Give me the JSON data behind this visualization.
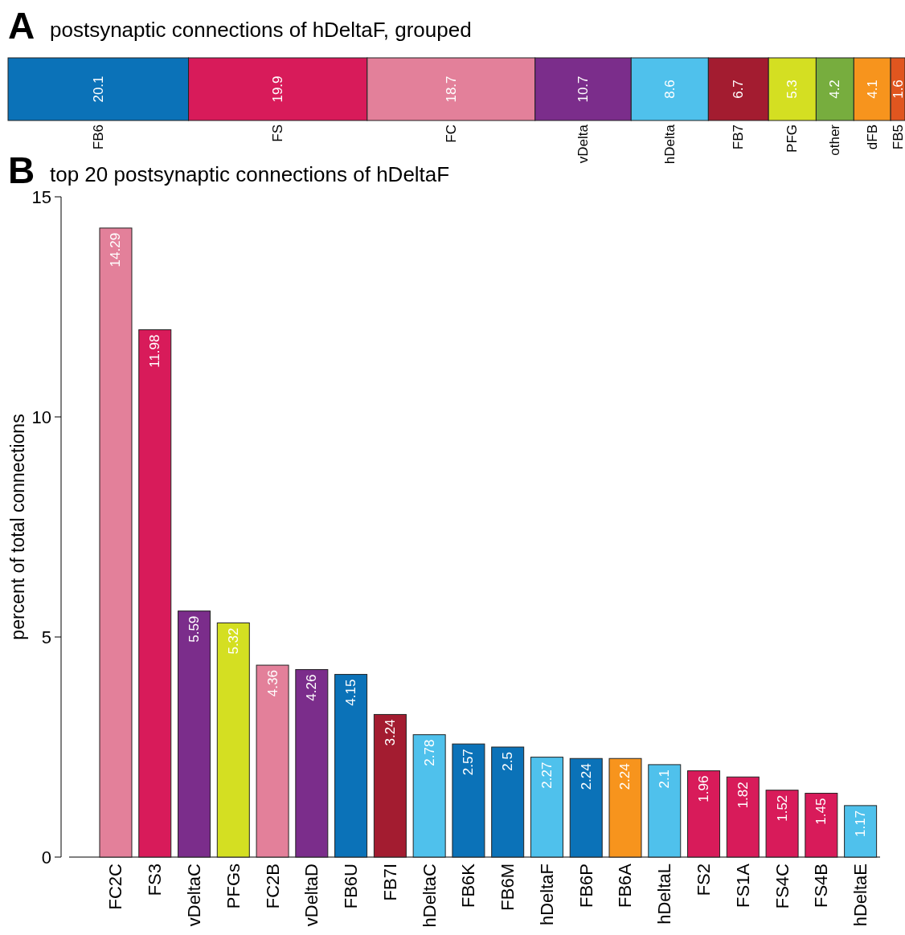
{
  "chart_data": [
    {
      "type": "bar",
      "orientation": "horizontal",
      "stacked": true,
      "data_labels": true,
      "title": "postsynaptic connections of hDeltaF, grouped",
      "annotations": [
        "A"
      ],
      "categories": [
        null
      ],
      "series": [
        {
          "name": "FB6",
          "color": "#0b72b8",
          "values": [
            20.1
          ]
        },
        {
          "name": "FS",
          "color": "#d81b5a",
          "values": [
            19.9
          ]
        },
        {
          "name": "FC",
          "color": "#e3809a",
          "values": [
            18.7
          ]
        },
        {
          "name": "vDelta",
          "color": "#7b2d8b",
          "values": [
            10.7
          ]
        },
        {
          "name": "hDelta",
          "color": "#4fc1ec",
          "values": [
            8.6
          ]
        },
        {
          "name": "FB7",
          "color": "#a31c30",
          "values": [
            6.7
          ]
        },
        {
          "name": "PFG",
          "color": "#d4df22",
          "values": [
            5.3
          ]
        },
        {
          "name": "other",
          "color": "#77ad3e",
          "values": [
            4.2
          ]
        },
        {
          "name": "dFB",
          "color": "#f7941d",
          "values": [
            4.1
          ]
        },
        {
          "name": "FB5",
          "color": "#e0561f",
          "values": [
            1.6
          ]
        }
      ]
    },
    {
      "type": "bar",
      "title": "top 20 postsynaptic connections of hDeltaF",
      "annotations": [
        "B"
      ],
      "ylabel": "percent of total connections",
      "ylim": [
        0,
        15
      ],
      "yticks": [
        0,
        5,
        10,
        15
      ],
      "data_labels": true,
      "categories": [
        "FC2C",
        "FS3",
        "vDeltaC",
        "PFGs",
        "FC2B",
        "vDeltaD",
        "FB6U",
        "FB7I",
        "hDeltaC",
        "FB6K",
        "FB6M",
        "hDeltaF",
        "FB6P",
        "FB6A",
        "hDeltaL",
        "FS2",
        "FS1A",
        "FS4C",
        "FS4B",
        "hDeltaE"
      ],
      "values": [
        14.29,
        11.98,
        5.59,
        5.32,
        4.36,
        4.26,
        4.15,
        3.24,
        2.78,
        2.57,
        2.5,
        2.27,
        2.24,
        2.24,
        2.1,
        1.96,
        1.82,
        1.52,
        1.45,
        1.17
      ],
      "colors": [
        "#e3809a",
        "#d81b5a",
        "#7b2d8b",
        "#d4df22",
        "#e3809a",
        "#7b2d8b",
        "#0b72b8",
        "#a31c30",
        "#4fc1ec",
        "#0b72b8",
        "#0b72b8",
        "#4fc1ec",
        "#0b72b8",
        "#f7941d",
        "#4fc1ec",
        "#d81b5a",
        "#d81b5a",
        "#d81b5a",
        "#d81b5a",
        "#4fc1ec"
      ]
    }
  ]
}
